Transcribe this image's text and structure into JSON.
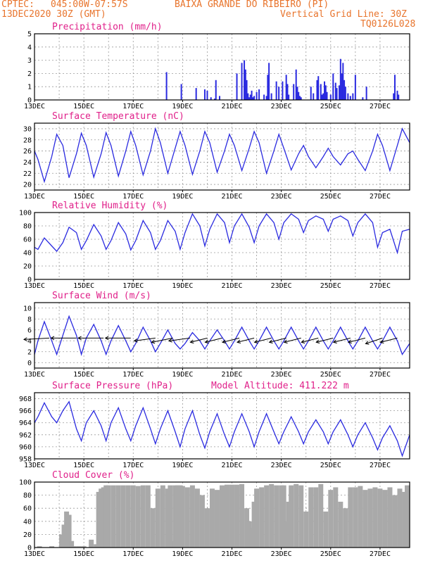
{
  "header": {
    "source": "CPTEC:",
    "coords": "045:00W-07:57S",
    "location": "BAIXA GRANDE DO RIBEIRO (PI)",
    "date": "13DEC2020 30Z (GMT)",
    "grid_note": "Vertical Grid Line: 30Z",
    "code": "TQ0126L028"
  },
  "colors": {
    "header": "#e8742c",
    "title": "#e0208a",
    "line": "#2a2ae0",
    "cloud": "#a9a9a9"
  },
  "chart_data": [
    {
      "type": "bar",
      "title": "Precipitation (mm/h)",
      "x_range": [
        0,
        15.2
      ],
      "ylim": [
        0,
        5
      ],
      "yticks": [
        0,
        1,
        2,
        3,
        4,
        5
      ],
      "xticks": [
        "13DEC",
        "15DEC",
        "17DEC",
        "19DEC",
        "21DEC",
        "23DEC",
        "25DEC",
        "27DEC"
      ],
      "x": [
        5.35,
        5.95,
        6.55,
        6.9,
        7.0,
        7.15,
        7.3,
        7.35,
        7.5,
        8.2,
        8.4,
        8.5,
        8.55,
        8.6,
        8.65,
        8.7,
        8.75,
        8.8,
        8.85,
        8.9,
        9.0,
        9.1,
        9.3,
        9.4,
        9.45,
        9.5,
        9.6,
        9.8,
        9.9,
        10.05,
        10.2,
        10.25,
        10.3,
        10.5,
        10.6,
        10.65,
        10.7,
        10.75,
        10.8,
        11.2,
        11.3,
        11.45,
        11.5,
        11.6,
        11.65,
        11.7,
        11.75,
        11.8,
        11.85,
        12.0,
        12.1,
        12.2,
        12.25,
        12.35,
        12.4,
        12.45,
        12.5,
        12.55,
        12.6,
        12.7,
        12.8,
        12.9,
        13.0,
        13.3,
        13.45,
        14.55,
        14.6,
        14.7,
        14.75
      ],
      "values": [
        2.1,
        1.2,
        0.9,
        0.8,
        0.7,
        0.2,
        0.1,
        1.5,
        0.3,
        2.0,
        2.8,
        3.0,
        2.3,
        1.5,
        0.5,
        0.2,
        0.4,
        0.7,
        0.2,
        0.3,
        0.6,
        0.8,
        0.4,
        0.3,
        1.9,
        2.8,
        0.5,
        1.4,
        1.0,
        1.4,
        1.9,
        1.2,
        0.4,
        1.2,
        2.3,
        1.0,
        0.6,
        0.3,
        0.2,
        1.0,
        0.5,
        1.5,
        1.8,
        1.2,
        0.4,
        0.5,
        1.4,
        1.1,
        0.6,
        0.4,
        2.0,
        1.3,
        0.9,
        1.1,
        3.1,
        2.0,
        2.8,
        1.5,
        1.0,
        0.5,
        0.3,
        0.5,
        1.9,
        0.2,
        1.0,
        0.5,
        1.9,
        0.7,
        0.4
      ]
    },
    {
      "type": "line",
      "title": "Surface Temperature (nC)",
      "x_range": [
        0,
        15.2
      ],
      "ylim": [
        19,
        31
      ],
      "yticks": [
        20,
        22,
        24,
        26,
        28,
        30
      ],
      "xticks": [
        "13DEC",
        "15DEC",
        "17DEC",
        "19DEC",
        "21DEC",
        "23DEC",
        "25DEC",
        "27DEC"
      ],
      "x": [
        0,
        0.14,
        0.4,
        0.7,
        0.9,
        1.15,
        1.4,
        1.7,
        1.9,
        2.1,
        2.4,
        2.7,
        2.9,
        3.1,
        3.4,
        3.7,
        3.9,
        4.1,
        4.4,
        4.7,
        4.9,
        5.1,
        5.4,
        5.7,
        5.9,
        6.1,
        6.4,
        6.7,
        6.9,
        7.1,
        7.4,
        7.7,
        7.9,
        8.1,
        8.4,
        8.7,
        8.9,
        9.1,
        9.4,
        9.7,
        9.9,
        10.1,
        10.4,
        10.7,
        10.9,
        11.1,
        11.4,
        11.7,
        11.9,
        12.1,
        12.4,
        12.7,
        12.9,
        13.1,
        13.4,
        13.7,
        13.9,
        14.1,
        14.4,
        14.7,
        14.9,
        15.2
      ],
      "values": [
        26,
        24.5,
        20.5,
        25,
        29,
        27,
        21.2,
        25.5,
        29.2,
        27,
        21.3,
        25.5,
        29.3,
        27,
        21.5,
        26,
        29.5,
        27,
        21.7,
        26,
        30,
        27.5,
        22,
        26.5,
        29.5,
        27,
        21.8,
        26,
        29.5,
        27.5,
        22.2,
        26,
        29,
        27,
        22.5,
        26.5,
        29.5,
        27.5,
        22,
        26,
        29,
        26.5,
        22.6,
        25.5,
        27,
        25,
        23,
        25,
        26.5,
        25,
        23.5,
        25.5,
        26,
        24.5,
        22.5,
        26,
        29,
        27,
        22.5,
        27,
        30,
        27.5
      ]
    },
    {
      "type": "line",
      "title": "Relative Humidity (%)",
      "x_range": [
        0,
        15.2
      ],
      "ylim": [
        0,
        100
      ],
      "yticks": [
        0,
        20,
        40,
        60,
        80,
        100
      ],
      "xticks": [
        "13DEC",
        "15DEC",
        "17DEC",
        "19DEC",
        "21DEC",
        "23DEC",
        "25DEC",
        "27DEC"
      ],
      "x": [
        0,
        0.14,
        0.4,
        0.7,
        0.9,
        1.15,
        1.4,
        1.7,
        1.9,
        2.1,
        2.4,
        2.7,
        2.9,
        3.1,
        3.4,
        3.7,
        3.9,
        4.1,
        4.4,
        4.7,
        4.9,
        5.1,
        5.4,
        5.7,
        5.9,
        6.1,
        6.4,
        6.7,
        6.9,
        7.1,
        7.4,
        7.7,
        7.9,
        8.1,
        8.4,
        8.7,
        8.9,
        9.1,
        9.4,
        9.7,
        9.9,
        10.1,
        10.4,
        10.7,
        10.9,
        11.1,
        11.4,
        11.7,
        11.9,
        12.1,
        12.4,
        12.7,
        12.9,
        13.1,
        13.4,
        13.7,
        13.9,
        14.1,
        14.4,
        14.7,
        14.9,
        15.2
      ],
      "values": [
        48,
        45,
        62,
        50,
        42,
        55,
        78,
        70,
        45,
        58,
        82,
        65,
        45,
        58,
        85,
        68,
        44,
        58,
        88,
        70,
        45,
        58,
        88,
        72,
        45,
        70,
        98,
        80,
        50,
        75,
        98,
        85,
        55,
        80,
        98,
        78,
        55,
        80,
        98,
        85,
        60,
        85,
        98,
        90,
        70,
        88,
        95,
        90,
        72,
        90,
        95,
        88,
        65,
        85,
        98,
        85,
        48,
        70,
        75,
        40,
        72,
        75
      ]
    },
    {
      "type": "line",
      "title": "Surface Wind (m/s)",
      "x_range": [
        0,
        15.2
      ],
      "ylim": [
        -1,
        11
      ],
      "yticks": [
        0,
        2,
        4,
        6,
        8,
        10
      ],
      "xticks": [
        "13DEC",
        "15DEC",
        "17DEC",
        "19DEC",
        "21DEC",
        "23DEC",
        "25DEC",
        "27DEC"
      ],
      "x": [
        0,
        0.14,
        0.4,
        0.7,
        0.9,
        1.15,
        1.4,
        1.7,
        1.9,
        2.1,
        2.4,
        2.7,
        2.9,
        3.1,
        3.4,
        3.7,
        3.9,
        4.1,
        4.4,
        4.7,
        4.9,
        5.1,
        5.4,
        5.7,
        5.9,
        6.1,
        6.4,
        6.7,
        6.9,
        7.1,
        7.4,
        7.7,
        7.9,
        8.1,
        8.4,
        8.7,
        8.9,
        9.1,
        9.4,
        9.7,
        9.9,
        10.1,
        10.4,
        10.7,
        10.9,
        11.1,
        11.4,
        11.7,
        11.9,
        12.1,
        12.4,
        12.7,
        12.9,
        13.1,
        13.4,
        13.7,
        13.9,
        14.1,
        14.4,
        14.7,
        14.9,
        15.2
      ],
      "values": [
        1.5,
        4,
        7.5,
        4,
        1.5,
        5,
        8.5,
        5,
        1.5,
        4.5,
        7,
        4,
        1.5,
        4,
        6.8,
        4,
        2,
        3.5,
        6.5,
        4,
        2,
        3.5,
        6,
        3.5,
        2.5,
        3.5,
        5.5,
        4,
        2.5,
        4,
        6,
        4,
        2.5,
        4,
        6.5,
        4,
        2.5,
        4,
        6.5,
        4,
        2.5,
        4,
        6.5,
        4,
        2.5,
        4,
        6.5,
        4,
        2.5,
        4,
        6.5,
        4,
        2.5,
        4,
        6.5,
        4,
        2.5,
        4,
        6.5,
        4,
        1.5,
        3.5
      ],
      "vectors": {
        "x": [
          0.6,
          1.7,
          2.8,
          3.9,
          4.9,
          5.6,
          6.3,
          7.0,
          7.6,
          8.3,
          8.9,
          9.6,
          10.2,
          10.8,
          11.5,
          12.1,
          12.8,
          13.4,
          14.1,
          14.7
        ],
        "u": [
          3,
          3,
          3,
          3,
          2.5,
          2.5,
          2.5,
          2,
          2,
          2,
          2,
          2,
          2,
          2,
          2,
          2,
          2,
          2,
          2,
          2
        ],
        "v": [
          0.5,
          0,
          0,
          0,
          1,
          1.5,
          1,
          1.5,
          1.5,
          1.5,
          1.5,
          1.5,
          1.5,
          1.5,
          1.5,
          1.5,
          1.5,
          1.5,
          2,
          1.5
        ]
      }
    },
    {
      "type": "line",
      "title": "Surface Pressure (hPa)",
      "annotation": "Model Altitude: 411.222 m",
      "x_range": [
        0,
        15.2
      ],
      "ylim": [
        958,
        969
      ],
      "yticks": [
        958,
        960,
        962,
        964,
        966,
        968
      ],
      "xticks": [
        "13DEC",
        "15DEC",
        "17DEC",
        "19DEC",
        "21DEC",
        "23DEC",
        "25DEC",
        "27DEC"
      ],
      "x": [
        0,
        0.14,
        0.4,
        0.7,
        0.9,
        1.15,
        1.4,
        1.7,
        1.9,
        2.1,
        2.4,
        2.7,
        2.9,
        3.1,
        3.4,
        3.7,
        3.9,
        4.1,
        4.4,
        4.7,
        4.9,
        5.1,
        5.4,
        5.7,
        5.9,
        6.1,
        6.4,
        6.7,
        6.9,
        7.1,
        7.4,
        7.7,
        7.9,
        8.1,
        8.4,
        8.7,
        8.9,
        9.1,
        9.4,
        9.7,
        9.9,
        10.1,
        10.4,
        10.7,
        10.9,
        11.1,
        11.4,
        11.7,
        11.9,
        12.1,
        12.4,
        12.7,
        12.9,
        13.1,
        13.4,
        13.7,
        13.9,
        14.1,
        14.4,
        14.7,
        14.9,
        15.2
      ],
      "values": [
        964,
        965,
        967.3,
        965,
        964,
        966,
        967.5,
        963,
        961,
        964,
        966,
        963.5,
        961,
        964,
        966.5,
        963,
        961,
        963.5,
        966.5,
        963,
        960.5,
        963,
        966,
        962.5,
        960,
        963,
        966,
        962,
        959.8,
        962.5,
        965.5,
        962,
        960,
        962.5,
        965.5,
        962.5,
        960,
        962.5,
        965.5,
        962.5,
        960.5,
        962.5,
        965,
        962.5,
        960.5,
        962.5,
        964.5,
        962.5,
        960.5,
        962.5,
        964.5,
        962,
        960,
        962,
        964,
        961.5,
        959.5,
        961.5,
        963.5,
        961,
        958.5,
        962
      ]
    },
    {
      "type": "bar",
      "title": "Cloud Cover (%)",
      "x_range": [
        0,
        15.2
      ],
      "ylim": [
        0,
        100
      ],
      "yticks": [
        0,
        20,
        40,
        60,
        80,
        100
      ],
      "xticks": [
        "13DEC",
        "15DEC",
        "17DEC",
        "19DEC",
        "21DEC",
        "23DEC",
        "25DEC",
        "27DEC"
      ],
      "x": [
        0.2,
        0.7,
        1.1,
        1.2,
        1.3,
        1.4,
        1.5,
        1.6,
        1.8,
        2.0,
        2.3,
        2.5,
        2.6,
        2.7,
        2.8,
        2.9,
        3.0,
        3.2,
        3.4,
        3.6,
        3.8,
        4.0,
        4.2,
        4.4,
        4.6,
        4.8,
        5.0,
        5.2,
        5.4,
        5.5,
        5.6,
        5.7,
        5.8,
        5.9,
        6.0,
        6.2,
        6.4,
        6.6,
        6.8,
        7.0,
        7.2,
        7.4,
        7.6,
        7.8,
        8.0,
        8.2,
        8.4,
        8.6,
        8.7,
        8.8,
        8.9,
        9.0,
        9.2,
        9.4,
        9.6,
        9.8,
        10.0,
        10.1,
        10.2,
        10.3,
        10.4,
        10.6,
        10.8,
        11.0,
        11.2,
        11.4,
        11.6,
        11.8,
        12.0,
        12.2,
        12.4,
        12.6,
        12.8,
        13.0,
        13.2,
        13.4,
        13.6,
        13.8,
        14.0,
        14.2,
        14.4,
        14.6,
        14.8,
        15.0,
        15.1
      ],
      "values": [
        2,
        2,
        20,
        35,
        55,
        50,
        10,
        2,
        2,
        2,
        12,
        5,
        85,
        90,
        92,
        95,
        95,
        95,
        95,
        95,
        95,
        95,
        94,
        95,
        95,
        60,
        90,
        95,
        90,
        95,
        10,
        95,
        95,
        95,
        94,
        92,
        95,
        90,
        80,
        60,
        90,
        88,
        95,
        96,
        96,
        96,
        97,
        60,
        40,
        30,
        70,
        90,
        92,
        95,
        97,
        95,
        95,
        95,
        40,
        70,
        95,
        97,
        95,
        55,
        92,
        92,
        97,
        55,
        88,
        92,
        70,
        60,
        92,
        92,
        94,
        88,
        90,
        92,
        90,
        88,
        92,
        80,
        90,
        85,
        95
      ]
    }
  ]
}
